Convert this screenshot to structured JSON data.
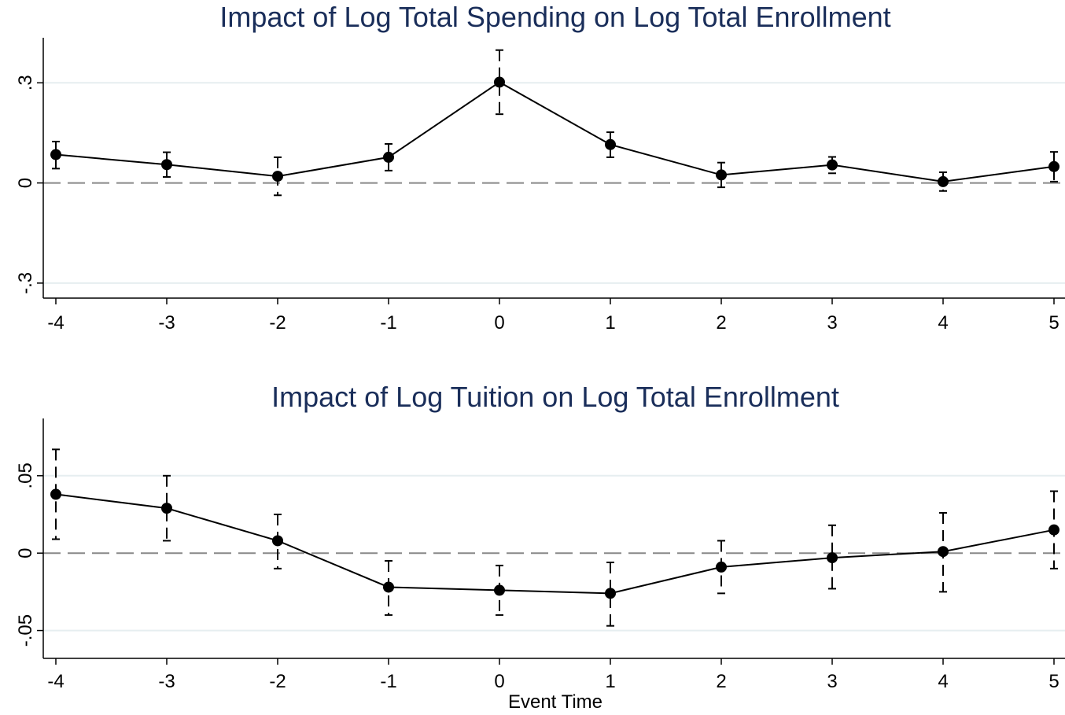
{
  "colors": {
    "title": "#1a2e5a",
    "gridline": "#e6eef0",
    "zero_line": "#888888",
    "series": "#000000"
  },
  "chart_data": [
    {
      "type": "line",
      "title": "Impact of Log Total Spending on Log Total Enrollment",
      "xlabel": "",
      "ylabel": "",
      "x": [
        -4,
        -3,
        -2,
        -1,
        0,
        1,
        2,
        3,
        4,
        5
      ],
      "x_tick_labels": [
        "-4",
        "-3",
        "-2",
        "-1",
        "0",
        "1",
        "2",
        "3",
        "4",
        "5"
      ],
      "y_ticks": [
        -0.3,
        0,
        0.3
      ],
      "y_tick_labels": [
        "-.3",
        "0",
        ".3"
      ],
      "ylim": [
        -0.345,
        0.435
      ],
      "grid": true,
      "reference_line": 0,
      "series": [
        {
          "values": [
            0.085,
            0.055,
            0.02,
            0.077,
            0.302,
            0.115,
            0.024,
            0.054,
            0.004,
            0.049
          ],
          "ci_lower": [
            0.043,
            0.018,
            -0.037,
            0.037,
            0.206,
            0.077,
            -0.013,
            0.029,
            -0.024,
            0.004
          ],
          "ci_upper": [
            0.124,
            0.092,
            0.077,
            0.117,
            0.398,
            0.152,
            0.061,
            0.078,
            0.032,
            0.093
          ]
        }
      ]
    },
    {
      "type": "line",
      "title": "Impact of Log Tuition on Log Total Enrollment",
      "xlabel": "Event Time",
      "ylabel": "",
      "x": [
        -4,
        -3,
        -2,
        -1,
        0,
        1,
        2,
        3,
        4,
        5
      ],
      "x_tick_labels": [
        "-4",
        "-3",
        "-2",
        "-1",
        "0",
        "1",
        "2",
        "3",
        "4",
        "5"
      ],
      "y_ticks": [
        -0.05,
        0,
        0.05
      ],
      "y_tick_labels": [
        "-.05",
        "0",
        ".05"
      ],
      "ylim": [
        -0.068,
        0.087
      ],
      "grid": true,
      "reference_line": 0,
      "series": [
        {
          "values": [
            0.038,
            0.029,
            0.008,
            -0.022,
            -0.024,
            -0.026,
            -0.009,
            -0.003,
            0.001,
            0.015
          ],
          "ci_lower": [
            0.009,
            0.008,
            -0.01,
            -0.04,
            -0.04,
            -0.047,
            -0.026,
            -0.023,
            -0.025,
            -0.01
          ],
          "ci_upper": [
            0.067,
            0.05,
            0.025,
            -0.005,
            -0.008,
            -0.006,
            0.008,
            0.018,
            0.026,
            0.04
          ]
        }
      ]
    }
  ]
}
